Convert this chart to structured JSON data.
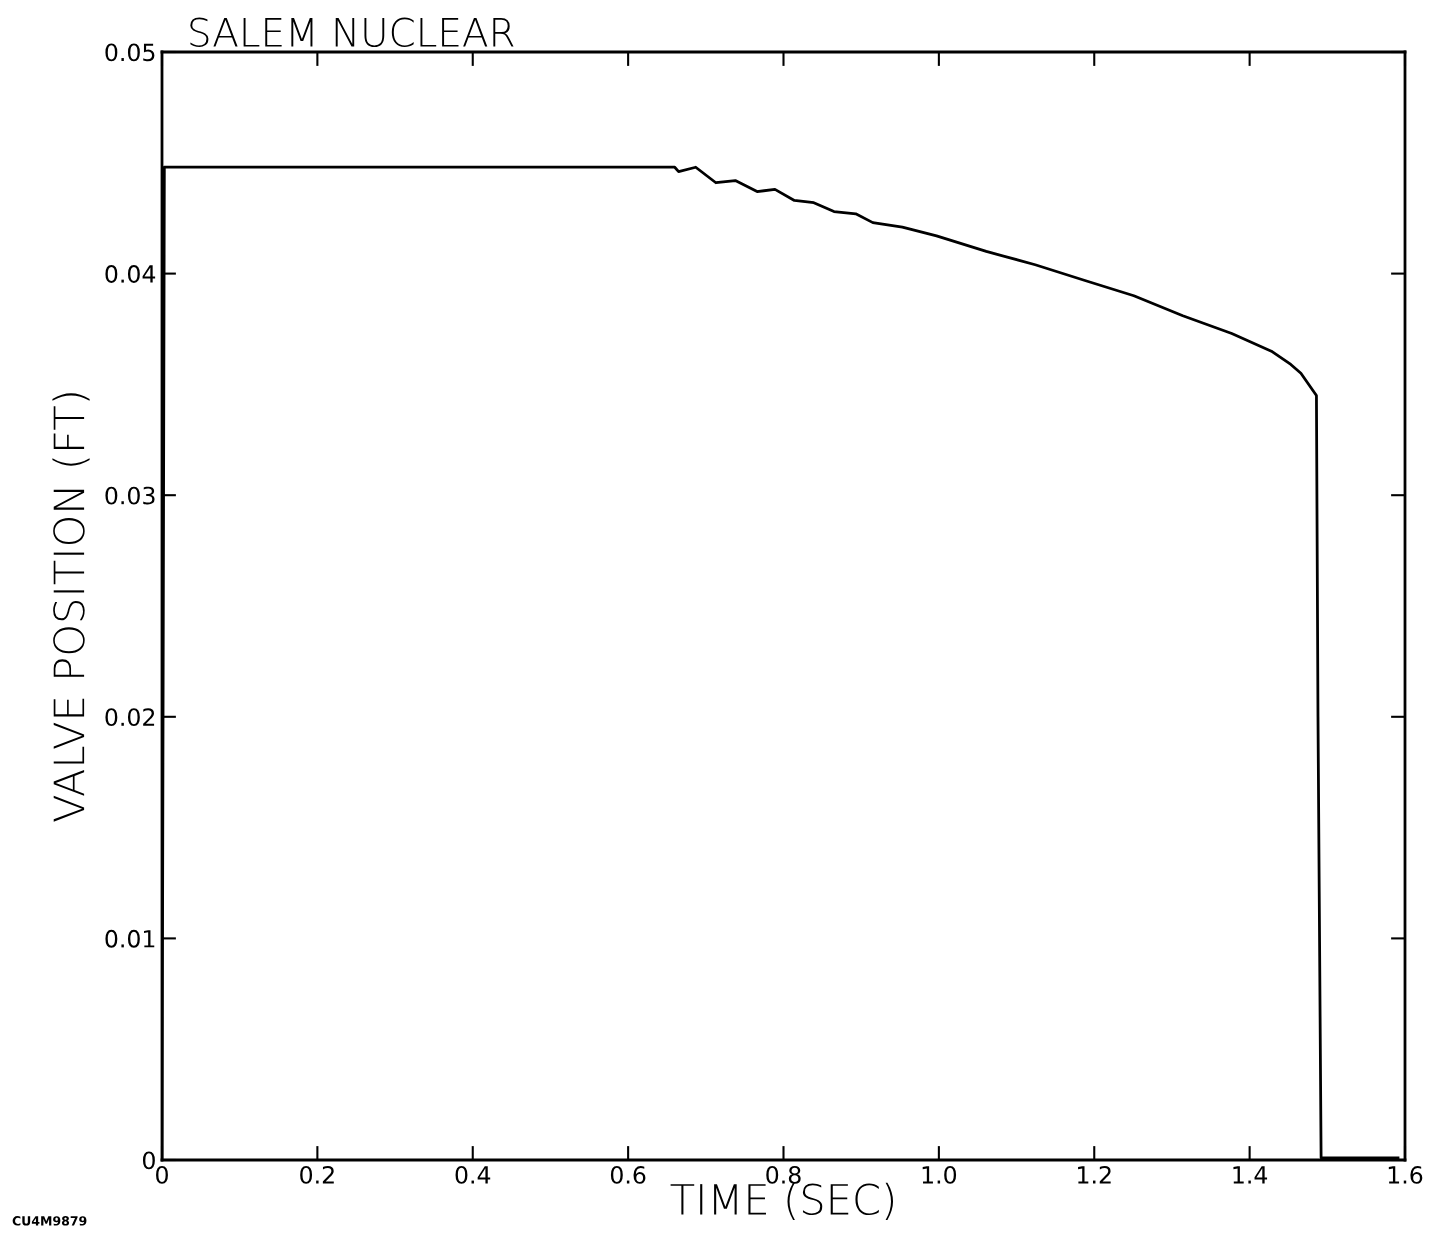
{
  "chart_data": {
    "type": "line",
    "title": "SALEM NUCLEAR",
    "xlabel": "TIME (SEC)",
    "ylabel": "VALVE POSITION (FT)",
    "annotations": [
      "CU4M9879"
    ],
    "xlim": [
      0,
      1.6
    ],
    "xticks": [
      0,
      0.2,
      0.4,
      0.6,
      0.8,
      {
        "value": 1.0,
        "label": "1.0"
      },
      1.2,
      1.4,
      1.6
    ],
    "ylim": [
      0,
      0.05
    ],
    "yticks": [
      0,
      0.01,
      0.02,
      0.03,
      0.04,
      0.05
    ],
    "grid": false,
    "legend": false,
    "marker": "none",
    "line_style": "solid",
    "series": [
      {
        "color": "#000000",
        "x": [
          0,
          0.003,
          0.1,
          0.3,
          0.5,
          0.66,
          0.665,
          0.687,
          0.713,
          0.738,
          0.766,
          0.789,
          0.814,
          0.839,
          0.865,
          0.893,
          0.915,
          0.953,
          0.997,
          1.061,
          1.124,
          1.187,
          1.251,
          1.314,
          1.377,
          1.428,
          1.453,
          1.466,
          1.486,
          1.488,
          1.492,
          1.55,
          1.591
        ],
        "values": [
          0,
          0.0448,
          0.0448,
          0.0448,
          0.0448,
          0.0448,
          0.0446,
          0.0448,
          0.0441,
          0.0442,
          0.0437,
          0.0438,
          0.0433,
          0.0432,
          0.0428,
          0.0427,
          0.0423,
          0.0421,
          0.0417,
          0.041,
          0.0404,
          0.0397,
          0.039,
          0.0381,
          0.0373,
          0.0365,
          0.0359,
          0.0355,
          0.0345,
          0.02,
          0.0001,
          0.0001,
          0.0001
        ]
      }
    ]
  }
}
